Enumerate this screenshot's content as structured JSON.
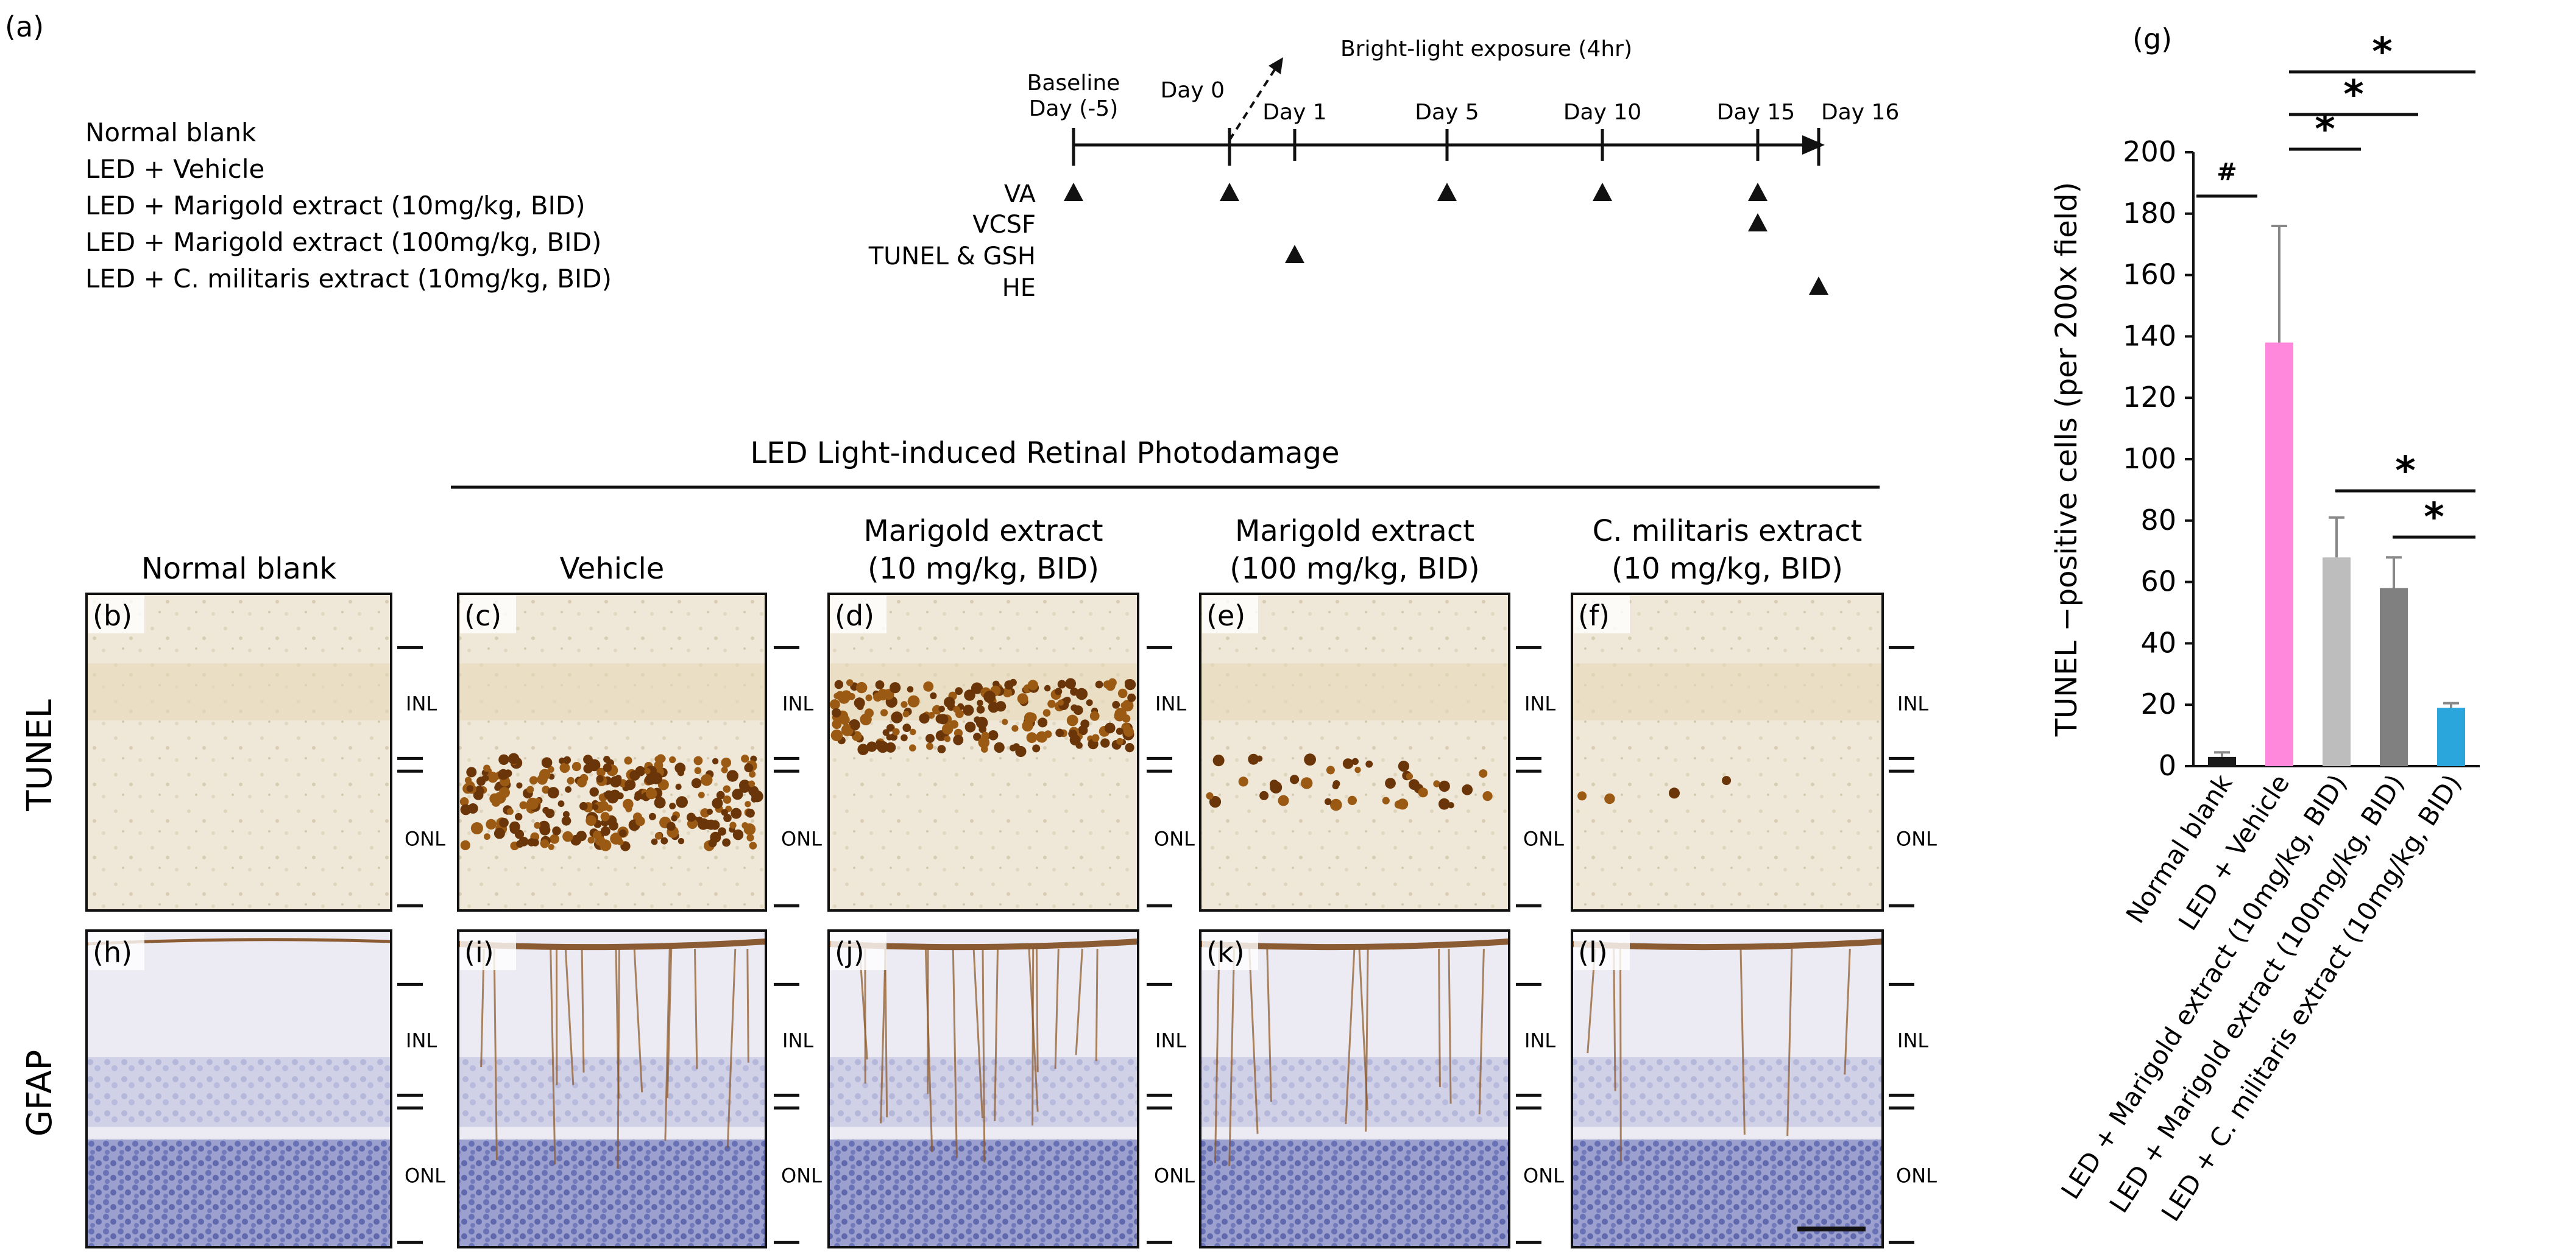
{
  "panel_labels": {
    "a": "(a)",
    "g": "(g)"
  },
  "groups": [
    "Normal blank",
    "LED + Vehicle",
    "LED + Marigold extract (10mg/kg, BID)",
    "LED + Marigold extract (100mg/kg, BID)",
    "LED + C. militaris extract (10mg/kg, BID)"
  ],
  "timeline": {
    "exposure": "Bright-light exposure (4hr)",
    "days": [
      {
        "id": "baseline",
        "l1": "Baseline",
        "l2": "Day (-5)"
      },
      {
        "id": "d0",
        "l1": "Day 0",
        "l2": ""
      },
      {
        "id": "d1",
        "l1": "Day 1",
        "l2": ""
      },
      {
        "id": "d5",
        "l1": "Day 5",
        "l2": ""
      },
      {
        "id": "d10",
        "l1": "Day 10",
        "l2": ""
      },
      {
        "id": "d15",
        "l1": "Day 15",
        "l2": ""
      },
      {
        "id": "d16",
        "l1": "Day 16",
        "l2": ""
      }
    ],
    "rows": [
      {
        "label": "VA",
        "days": [
          "baseline",
          "d0",
          "d5",
          "d10",
          "d15"
        ]
      },
      {
        "label": "VCSF",
        "days": [
          "d15"
        ]
      },
      {
        "label": "TUNEL & GSH",
        "days": [
          "d1"
        ]
      },
      {
        "label": "HE",
        "days": [
          "d16"
        ]
      }
    ]
  },
  "microscopy": {
    "header": "LED Light-induced Retinal Photodamage",
    "columns": [
      {
        "l1": "Normal blank",
        "l2": ""
      },
      {
        "l1": "Vehicle",
        "l2": ""
      },
      {
        "l1": "Marigold extract",
        "l2": "(10 mg/kg, BID)"
      },
      {
        "l1": "Marigold extract",
        "l2": "(100 mg/kg, BID)"
      },
      {
        "l1": "C. militaris extract",
        "l2": "(10 mg/kg, BID)"
      }
    ],
    "rows": [
      {
        "label": "TUNEL",
        "panels": [
          "(b)",
          "(c)",
          "(d)",
          "(e)",
          "(f)"
        ]
      },
      {
        "label": "GFAP",
        "panels": [
          "(h)",
          "(i)",
          "(j)",
          "(k)",
          "(l)"
        ]
      }
    ],
    "layer_labels": {
      "inl": "INL",
      "onl": "ONL"
    }
  },
  "chart_data": {
    "type": "bar",
    "title": "",
    "xlabel": "",
    "ylabel": "TUNEL −positive cells  (per 200x field)",
    "ylim": [
      0,
      200
    ],
    "yticks": [
      0,
      20,
      40,
      60,
      80,
      100,
      120,
      140,
      160,
      180,
      200
    ],
    "categories": [
      "Normal blank",
      "LED + Vehicle",
      "LED + Marigold extract (10mg/kg, BID)",
      "LED + Marigold extract (100mg/kg, BID)",
      "LED + C. militaris extract (10mg/kg, BID)"
    ],
    "values": [
      3,
      138,
      68,
      58,
      19
    ],
    "errors": [
      1.5,
      38,
      13,
      10,
      1.5
    ],
    "colors": [
      "#1a1a1a",
      "#ff88dd",
      "#bdbdbd",
      "#808080",
      "#2aa6dd"
    ],
    "significance": [
      {
        "from": 0,
        "to": 1,
        "mark": "#"
      },
      {
        "from": 1,
        "to": 2,
        "mark": "*"
      },
      {
        "from": 1,
        "to": 3,
        "mark": "*"
      },
      {
        "from": 1,
        "to": 4,
        "mark": "*"
      },
      {
        "from": 2,
        "to": 4,
        "mark": "*"
      },
      {
        "from": 3,
        "to": 4,
        "mark": "*"
      }
    ]
  }
}
